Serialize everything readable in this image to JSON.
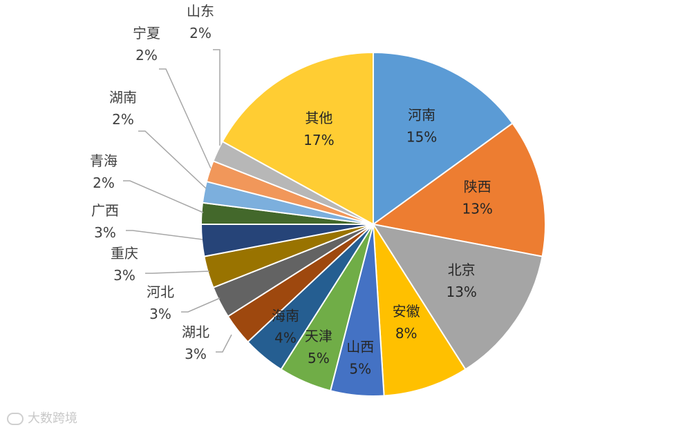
{
  "chart_data": {
    "type": "pie",
    "slices": [
      {
        "label": "河南",
        "value": 15,
        "pct": "15%",
        "color": "#5b9bd5"
      },
      {
        "label": "陕西",
        "value": 13,
        "pct": "13%",
        "color": "#ed7d31"
      },
      {
        "label": "北京",
        "value": 13,
        "pct": "13%",
        "color": "#a5a5a5"
      },
      {
        "label": "安徽",
        "value": 8,
        "pct": "8%",
        "color": "#ffc000"
      },
      {
        "label": "山西",
        "value": 5,
        "pct": "5%",
        "color": "#4472c4"
      },
      {
        "label": "天津",
        "value": 5,
        "pct": "5%",
        "color": "#70ad47"
      },
      {
        "label": "海南",
        "value": 4,
        "pct": "4%",
        "color": "#255e91"
      },
      {
        "label": "湖北",
        "value": 3,
        "pct": "3%",
        "color": "#9e480e"
      },
      {
        "label": "河北",
        "value": 3,
        "pct": "3%",
        "color": "#636363"
      },
      {
        "label": "重庆",
        "value": 3,
        "pct": "3%",
        "color": "#997300"
      },
      {
        "label": "广西",
        "value": 3,
        "pct": "3%",
        "color": "#264478"
      },
      {
        "label": "青海",
        "value": 2,
        "pct": "2%",
        "color": "#43682b"
      },
      {
        "label": "湖南",
        "value": 2,
        "pct": "2%",
        "color": "#7cafdd"
      },
      {
        "label": "宁夏",
        "value": 2,
        "pct": "2%",
        "color": "#f1975a"
      },
      {
        "label": "山东",
        "value": 2,
        "pct": "2%",
        "color": "#b7b7b7"
      },
      {
        "label": "其他",
        "value": 17,
        "pct": "17%",
        "color": "#ffcd33"
      }
    ],
    "start": "12 o'clock",
    "direction": "clockwise",
    "legend": "none",
    "data_labels": "category and percentage"
  },
  "watermark": "大数跨境"
}
